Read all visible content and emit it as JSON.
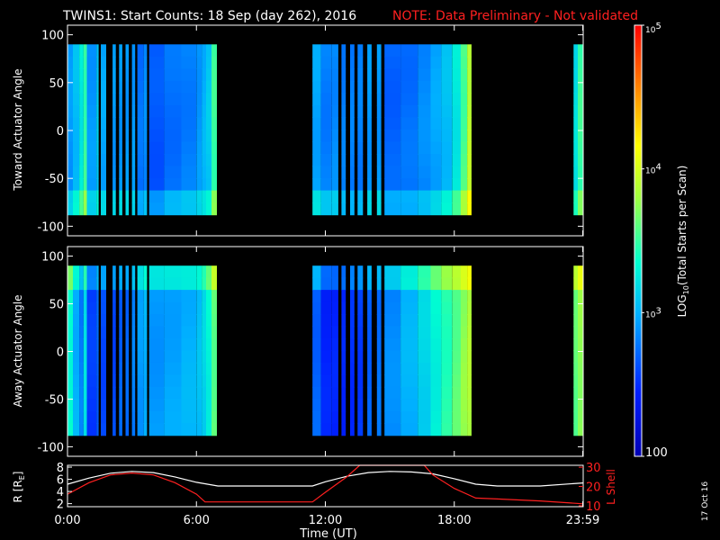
{
  "header": {
    "title": "TWINS1: Start Counts: 18 Sep (day 262), 2016",
    "note": "NOTE: Data Preliminary - Not validated",
    "note_color": "#ff2020"
  },
  "colorbar": {
    "label_main": "LOG",
    "label_sub": "10",
    "label_rest": "(Total Starts per Scan)",
    "ticks": [
      {
        "value": 100,
        "label": "100"
      },
      {
        "value": 1000,
        "label": "10",
        "exp": "3"
      },
      {
        "value": 10000,
        "label": "10",
        "exp": "4"
      },
      {
        "value": 100000,
        "label": "10",
        "exp": "5"
      }
    ],
    "range": [
      100,
      100000
    ],
    "scale": "log"
  },
  "date_stamp": "17 Oct 16",
  "bottom_panel": {
    "ylabel_main": "R [R",
    "ylabel_sub": "E",
    "ylabel_end": "]",
    "ylabel_right": "L Shell",
    "ylim_left": [
      1.5,
      8.3
    ],
    "yticks_left": [
      2,
      4,
      6,
      8
    ],
    "ylim_right": [
      9.5,
      31
    ],
    "yticks_right": [
      10,
      20,
      30
    ],
    "r_color": "#ffffff",
    "l_color": "#ff2020"
  },
  "x_axis": {
    "label": "Time (UT)",
    "ticks": [
      {
        "value": 0,
        "label": "0:00"
      },
      {
        "value": 6,
        "label": "6:00"
      },
      {
        "value": 12,
        "label": "12:00"
      },
      {
        "value": 18,
        "label": "18:00"
      },
      {
        "value": 23.98,
        "label": "23:59"
      }
    ],
    "range": [
      0,
      24
    ]
  },
  "chart_data": [
    {
      "type": "heatmap",
      "ylabel": "Toward Actuator Angle",
      "ylim": [
        -110,
        110
      ],
      "yticks": [
        -100,
        -50,
        0,
        50,
        100
      ],
      "angle_range": [
        -88,
        90
      ],
      "columns": [
        {
          "t0": 0.0,
          "t1": 0.25,
          "log": 2.9
        },
        {
          "t0": 0.25,
          "t1": 0.55,
          "log": 3.05
        },
        {
          "t0": 0.55,
          "t1": 0.75,
          "log": 3.25
        },
        {
          "t0": 0.75,
          "t1": 0.9,
          "log": 3.5
        },
        {
          "t0": 0.9,
          "t1": 1.35,
          "log": 2.9
        },
        {
          "t0": 1.35,
          "t1": 1.45,
          "log": 3.1
        },
        {
          "t0": 1.55,
          "t1": 1.8,
          "log": 2.95
        },
        {
          "t0": 2.1,
          "t1": 2.25,
          "log": 2.9
        },
        {
          "t0": 2.4,
          "t1": 2.55,
          "log": 2.9
        },
        {
          "t0": 2.7,
          "t1": 2.85,
          "log": 2.9
        },
        {
          "t0": 3.0,
          "t1": 3.15,
          "log": 2.9
        },
        {
          "t0": 3.25,
          "t1": 3.55,
          "log": 2.75
        },
        {
          "t0": 3.55,
          "t1": 3.7,
          "log": 2.85
        },
        {
          "t0": 3.8,
          "t1": 4.5,
          "log": 2.65
        },
        {
          "t0": 4.5,
          "t1": 5.3,
          "log": 2.75
        },
        {
          "t0": 5.3,
          "t1": 6.0,
          "log": 2.8
        },
        {
          "t0": 6.0,
          "t1": 6.25,
          "log": 2.9
        },
        {
          "t0": 6.25,
          "t1": 6.45,
          "log": 3.0
        },
        {
          "t0": 6.45,
          "t1": 6.7,
          "log": 3.1
        },
        {
          "t0": 6.7,
          "t1": 6.95,
          "log": 3.5
        },
        {
          "t0": 11.4,
          "t1": 11.8,
          "log": 2.95
        },
        {
          "t0": 11.8,
          "t1": 12.3,
          "log": 2.8
        },
        {
          "t0": 12.3,
          "t1": 12.6,
          "log": 2.85
        },
        {
          "t0": 12.75,
          "t1": 12.95,
          "log": 2.8
        },
        {
          "t0": 13.15,
          "t1": 13.35,
          "log": 2.8
        },
        {
          "t0": 13.5,
          "t1": 13.75,
          "log": 2.8
        },
        {
          "t0": 13.95,
          "t1": 14.15,
          "log": 2.9
        },
        {
          "t0": 14.4,
          "t1": 14.6,
          "log": 2.9
        },
        {
          "t0": 14.75,
          "t1": 15.5,
          "log": 2.7
        },
        {
          "t0": 15.5,
          "t1": 16.3,
          "log": 2.75
        },
        {
          "t0": 16.3,
          "t1": 16.9,
          "log": 2.85
        },
        {
          "t0": 16.9,
          "t1": 17.4,
          "log": 2.95
        },
        {
          "t0": 17.4,
          "t1": 17.9,
          "log": 3.05
        },
        {
          "t0": 17.9,
          "t1": 18.3,
          "log": 3.25
        },
        {
          "t0": 18.3,
          "t1": 18.6,
          "log": 3.55
        },
        {
          "t0": 18.6,
          "t1": 18.8,
          "log": 3.9
        },
        {
          "t0": 23.55,
          "t1": 23.75,
          "log": 3.2
        },
        {
          "t0": 23.75,
          "t1": 24.0,
          "log": 3.5
        }
      ]
    },
    {
      "type": "heatmap",
      "ylabel": "Away Actuator Angle",
      "ylim": [
        -110,
        110
      ],
      "yticks": [
        -100,
        -50,
        0,
        50,
        100
      ],
      "angle_range": [
        -88,
        90
      ],
      "columns": [
        {
          "t0": 0.0,
          "t1": 0.25,
          "log": 3.35
        },
        {
          "t0": 0.25,
          "t1": 0.55,
          "log": 3.0
        },
        {
          "t0": 0.55,
          "t1": 0.75,
          "log": 2.8
        },
        {
          "t0": 0.75,
          "t1": 0.9,
          "log": 3.2
        },
        {
          "t0": 0.9,
          "t1": 1.35,
          "log": 2.55
        },
        {
          "t0": 1.35,
          "t1": 1.45,
          "log": 2.7
        },
        {
          "t0": 1.55,
          "t1": 1.8,
          "log": 2.6
        },
        {
          "t0": 2.1,
          "t1": 2.25,
          "log": 2.6
        },
        {
          "t0": 2.4,
          "t1": 2.55,
          "log": 2.7
        },
        {
          "t0": 2.7,
          "t1": 2.85,
          "log": 2.7
        },
        {
          "t0": 3.0,
          "t1": 3.15,
          "log": 2.8
        },
        {
          "t0": 3.25,
          "t1": 3.55,
          "log": 2.9
        },
        {
          "t0": 3.55,
          "t1": 3.7,
          "log": 3.0
        },
        {
          "t0": 3.8,
          "t1": 4.5,
          "log": 2.9
        },
        {
          "t0": 4.5,
          "t1": 5.3,
          "log": 2.95
        },
        {
          "t0": 5.3,
          "t1": 6.0,
          "log": 3.0
        },
        {
          "t0": 6.0,
          "t1": 6.25,
          "log": 3.05
        },
        {
          "t0": 6.25,
          "t1": 6.45,
          "log": 3.15
        },
        {
          "t0": 6.45,
          "t1": 6.7,
          "log": 3.3
        },
        {
          "t0": 6.7,
          "t1": 6.95,
          "log": 3.6
        },
        {
          "t0": 11.4,
          "t1": 11.8,
          "log": 2.7
        },
        {
          "t0": 11.8,
          "t1": 12.3,
          "log": 2.45
        },
        {
          "t0": 12.3,
          "t1": 12.6,
          "log": 2.45
        },
        {
          "t0": 12.75,
          "t1": 12.95,
          "log": 2.45
        },
        {
          "t0": 13.15,
          "t1": 13.35,
          "log": 2.5
        },
        {
          "t0": 13.5,
          "t1": 13.75,
          "log": 2.55
        },
        {
          "t0": 13.95,
          "t1": 14.15,
          "log": 2.7
        },
        {
          "t0": 14.4,
          "t1": 14.6,
          "log": 2.75
        },
        {
          "t0": 14.75,
          "t1": 15.5,
          "log": 2.85
        },
        {
          "t0": 15.5,
          "t1": 16.3,
          "log": 3.0
        },
        {
          "t0": 16.3,
          "t1": 16.9,
          "log": 3.15
        },
        {
          "t0": 16.9,
          "t1": 17.4,
          "log": 3.3
        },
        {
          "t0": 17.4,
          "t1": 17.9,
          "log": 3.45
        },
        {
          "t0": 17.9,
          "t1": 18.3,
          "log": 3.6
        },
        {
          "t0": 18.3,
          "t1": 18.6,
          "log": 3.75
        },
        {
          "t0": 18.6,
          "t1": 18.8,
          "log": 3.85
        },
        {
          "t0": 23.55,
          "t1": 23.75,
          "log": 3.6
        },
        {
          "t0": 23.75,
          "t1": 24.0,
          "log": 3.75
        }
      ]
    },
    {
      "type": "line",
      "series": [
        {
          "axis": "left",
          "x": [
            0,
            1,
            2,
            3,
            4,
            5,
            6,
            7,
            11.4,
            12,
            13,
            14,
            15,
            16,
            17,
            18,
            19,
            20,
            22,
            24
          ],
          "y": [
            5.2,
            6.2,
            7.0,
            7.3,
            7.1,
            6.4,
            5.5,
            4.9,
            4.9,
            5.6,
            6.5,
            7.1,
            7.3,
            7.2,
            6.9,
            6.1,
            5.2,
            4.9,
            4.9,
            5.4
          ]
        },
        {
          "axis": "right",
          "x": [
            0,
            1,
            2,
            3,
            4,
            5,
            6,
            6.4,
            11.4,
            12,
            13,
            13.6,
            16.6,
            17,
            18,
            19,
            20,
            22,
            24
          ],
          "y": [
            16,
            22,
            26,
            27,
            26,
            22,
            16,
            12,
            12,
            17,
            25,
            31,
            31,
            26,
            19,
            14,
            13.5,
            12.5,
            11
          ]
        }
      ]
    }
  ]
}
